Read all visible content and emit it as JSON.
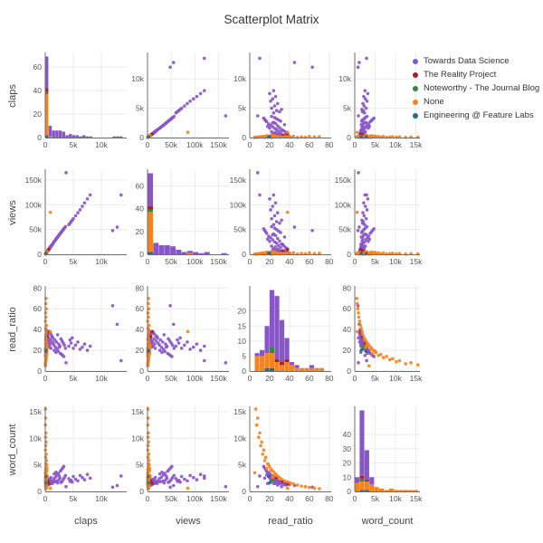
{
  "chart_data": {
    "type": "scatterplot-matrix",
    "title": "Scatterplot Matrix",
    "legend_position": "top-right",
    "grid": true,
    "publications": [
      {
        "label": "Towards Data Science",
        "color": "#8956c8"
      },
      {
        "label": "The Reality Project",
        "color": "#a82024"
      },
      {
        "label": "Noteworthy - The Journal Blog",
        "color": "#2e8b3d"
      },
      {
        "label": "None",
        "color": "#f8821b"
      },
      {
        "label": "Engineering @ Feature Labs",
        "color": "#1e6e8c"
      }
    ],
    "variables": [
      {
        "key": "claps",
        "label": "claps",
        "max": 14500,
        "ticks": [
          0,
          5000,
          10000
        ],
        "tick_labels": [
          "0",
          "5k",
          "10k"
        ],
        "bin": 600,
        "hist_ticks": [
          0,
          20,
          40,
          60
        ]
      },
      {
        "key": "views",
        "label": "views",
        "max": 172000,
        "ticks": [
          0,
          50000,
          100000,
          150000
        ],
        "tick_labels": [
          "0",
          "50k",
          "100k",
          "150k"
        ],
        "bin": 12000,
        "hist_ticks": [
          0,
          20,
          40,
          60
        ]
      },
      {
        "key": "read_ratio",
        "label": "read_ratio",
        "max": 82,
        "ticks": [
          0,
          20,
          40,
          60,
          80
        ],
        "tick_labels": [
          "0",
          "20",
          "40",
          "60",
          "80"
        ],
        "bin": 5,
        "hist_ticks": [
          0,
          5,
          10,
          15,
          20
        ]
      },
      {
        "key": "word_count",
        "label": "word_count",
        "max": 16000,
        "ticks": [
          0,
          5000,
          10000,
          15000
        ],
        "tick_labels": [
          "0",
          "5k",
          "10k",
          "15k"
        ],
        "bin": 1200,
        "hist_ticks": [
          0,
          10,
          20,
          30,
          40
        ]
      }
    ],
    "observations_format": [
      "claps",
      "views",
      "read_ratio",
      "word_count",
      "publication_index"
    ],
    "observations": [
      [
        120,
        1500,
        32,
        900,
        0
      ],
      [
        180,
        2400,
        28,
        1200,
        0
      ],
      [
        90,
        900,
        18,
        1500,
        0
      ],
      [
        250,
        4200,
        35,
        1300,
        0
      ],
      [
        60,
        700,
        22,
        2100,
        0
      ],
      [
        310,
        5200,
        30,
        1600,
        0
      ],
      [
        140,
        2000,
        25,
        1800,
        0
      ],
      [
        200,
        3500,
        38,
        1400,
        0
      ],
      [
        420,
        6800,
        27,
        2000,
        0
      ],
      [
        80,
        1100,
        20,
        2600,
        0
      ],
      [
        160,
        2800,
        33,
        1700,
        0
      ],
      [
        350,
        5600,
        24,
        1500,
        0
      ],
      [
        520,
        8200,
        29,
        1900,
        0
      ],
      [
        230,
        3100,
        21,
        2300,
        0
      ],
      [
        110,
        1300,
        26,
        1500,
        0
      ],
      [
        480,
        7400,
        36,
        1200,
        0
      ],
      [
        270,
        4000,
        19,
        2800,
        0
      ],
      [
        380,
        6100,
        31,
        1600,
        0
      ],
      [
        550,
        9000,
        23,
        2200,
        0
      ],
      [
        95,
        1000,
        17,
        3100,
        0
      ],
      [
        440,
        7000,
        34,
        1400,
        0
      ],
      [
        300,
        4800,
        28,
        1750,
        0
      ],
      [
        170,
        2200,
        40,
        1300,
        0
      ],
      [
        510,
        8000,
        26,
        2050,
        0
      ],
      [
        70,
        800,
        15,
        2500,
        0
      ],
      [
        390,
        6300,
        30,
        1450,
        0
      ],
      [
        240,
        3800,
        37,
        1250,
        0
      ],
      [
        650,
        10500,
        28,
        1900,
        0
      ],
      [
        720,
        12000,
        24,
        2300,
        0
      ],
      [
        800,
        13500,
        31,
        1700,
        0
      ],
      [
        900,
        15000,
        26,
        2100,
        0
      ],
      [
        1000,
        16500,
        22,
        2600,
        0
      ],
      [
        1100,
        18000,
        29,
        1850,
        0
      ],
      [
        1250,
        20000,
        33,
        1500,
        0
      ],
      [
        1400,
        22500,
        27,
        2000,
        0
      ],
      [
        1550,
        25000,
        25,
        2400,
        0
      ],
      [
        1700,
        27000,
        30,
        1800,
        0
      ],
      [
        1850,
        29500,
        23,
        2700,
        0
      ],
      [
        2000,
        32000,
        28,
        1950,
        0
      ],
      [
        2200,
        35000,
        35,
        1600,
        0
      ],
      [
        2400,
        38000,
        26,
        2150,
        0
      ],
      [
        2600,
        41000,
        24,
        2500,
        0
      ],
      [
        2800,
        44000,
        31,
        1700,
        0
      ],
      [
        3000,
        47000,
        29,
        1900,
        0
      ],
      [
        3200,
        50000,
        27,
        2250,
        0
      ],
      [
        3400,
        53000,
        25,
        2600,
        0
      ],
      [
        3600,
        56000,
        22,
        3000,
        0
      ],
      [
        750,
        11000,
        38,
        1350,
        0
      ],
      [
        950,
        14000,
        36,
        1500,
        0
      ],
      [
        1150,
        17500,
        34,
        1650,
        0
      ],
      [
        1350,
        21000,
        32,
        1800,
        0
      ],
      [
        1600,
        26000,
        20,
        3300,
        0
      ],
      [
        1900,
        30500,
        18,
        3600,
        0
      ],
      [
        2100,
        33500,
        21,
        3100,
        0
      ],
      [
        2300,
        36500,
        19,
        3400,
        0
      ],
      [
        2500,
        39500,
        23,
        2900,
        0
      ],
      [
        2700,
        42500,
        17,
        3800,
        0
      ],
      [
        2900,
        45500,
        16,
        4100,
        0
      ],
      [
        3100,
        48500,
        15,
        4400,
        0
      ],
      [
        3300,
        51500,
        14,
        4700,
        0
      ],
      [
        4200,
        60000,
        24,
        2400,
        0
      ],
      [
        4600,
        66000,
        27,
        2100,
        0
      ],
      [
        5000,
        72000,
        22,
        2800,
        0
      ],
      [
        5400,
        78000,
        25,
        2300,
        0
      ],
      [
        5800,
        84000,
        28,
        2000,
        0
      ],
      [
        6200,
        90000,
        21,
        3000,
        0
      ],
      [
        6600,
        97000,
        23,
        2600,
        0
      ],
      [
        7000,
        104000,
        26,
        2200,
        0
      ],
      [
        7500,
        112000,
        20,
        3200,
        0
      ],
      [
        8000,
        120000,
        24,
        2500,
        0
      ],
      [
        4400,
        63000,
        30,
        1900,
        0
      ],
      [
        4800,
        69000,
        32,
        1750,
        0
      ],
      [
        13500,
        120000,
        10,
        2900,
        0
      ],
      [
        12800,
        55000,
        45,
        1100,
        0
      ],
      [
        12000,
        48000,
        63,
        800,
        0
      ],
      [
        3700,
        165000,
        8,
        900,
        0
      ],
      [
        50,
        800,
        6,
        15500,
        3
      ],
      [
        80,
        1200,
        8,
        13800,
        3
      ],
      [
        30,
        500,
        7,
        12500,
        3
      ],
      [
        120,
        1800,
        10,
        11000,
        3
      ],
      [
        60,
        900,
        9,
        10200,
        3
      ],
      [
        150,
        2200,
        12,
        9300,
        3
      ],
      [
        90,
        1300,
        11,
        8600,
        3
      ],
      [
        40,
        600,
        14,
        7800,
        3
      ],
      [
        180,
        2600,
        13,
        7000,
        3
      ],
      [
        70,
        1000,
        16,
        6400,
        3
      ],
      [
        200,
        3000,
        15,
        5800,
        3
      ],
      [
        110,
        1600,
        18,
        5200,
        3
      ],
      [
        130,
        2000,
        20,
        4600,
        3
      ],
      [
        55,
        850,
        22,
        4100,
        3
      ],
      [
        160,
        2400,
        24,
        3700,
        3
      ],
      [
        85,
        1250,
        26,
        3300,
        3
      ],
      [
        210,
        3200,
        28,
        2900,
        3
      ],
      [
        45,
        700,
        30,
        2600,
        3
      ],
      [
        140,
        2100,
        32,
        2300,
        3
      ],
      [
        95,
        1400,
        35,
        2000,
        3
      ],
      [
        170,
        2500,
        38,
        1800,
        3
      ],
      [
        65,
        950,
        41,
        1600,
        3
      ],
      [
        220,
        3400,
        44,
        1400,
        3
      ],
      [
        35,
        550,
        48,
        1200,
        3
      ],
      [
        125,
        1900,
        52,
        1000,
        3
      ],
      [
        75,
        1100,
        56,
        900,
        3
      ],
      [
        190,
        2800,
        60,
        750,
        3
      ],
      [
        105,
        1550,
        65,
        600,
        3
      ],
      [
        145,
        2150,
        70,
        500,
        3
      ],
      [
        25,
        400,
        5,
        3500,
        3
      ],
      [
        240,
        3700,
        19,
        5000,
        3
      ],
      [
        300,
        4500,
        17,
        4300,
        3
      ],
      [
        260,
        4000,
        21,
        3900,
        3
      ],
      [
        330,
        5000,
        25,
        3000,
        3
      ],
      [
        360,
        5500,
        23,
        2700,
        3
      ],
      [
        900,
        85000,
        38,
        600,
        3
      ],
      [
        150,
        2500,
        27,
        2600,
        1
      ],
      [
        420,
        7000,
        33,
        1900,
        1
      ],
      [
        580,
        9500,
        38,
        1500,
        1
      ],
      [
        100,
        1400,
        23,
        2100,
        2
      ],
      [
        60,
        800,
        21,
        1800,
        2
      ],
      [
        130,
        2000,
        20,
        1600,
        4
      ],
      [
        90,
        1200,
        19,
        2800,
        4
      ]
    ],
    "stack_order_bottom_to_top": [
      4,
      3,
      2,
      1,
      0
    ],
    "scatter_draw_order": [
      0,
      1,
      2,
      3,
      4
    ]
  }
}
